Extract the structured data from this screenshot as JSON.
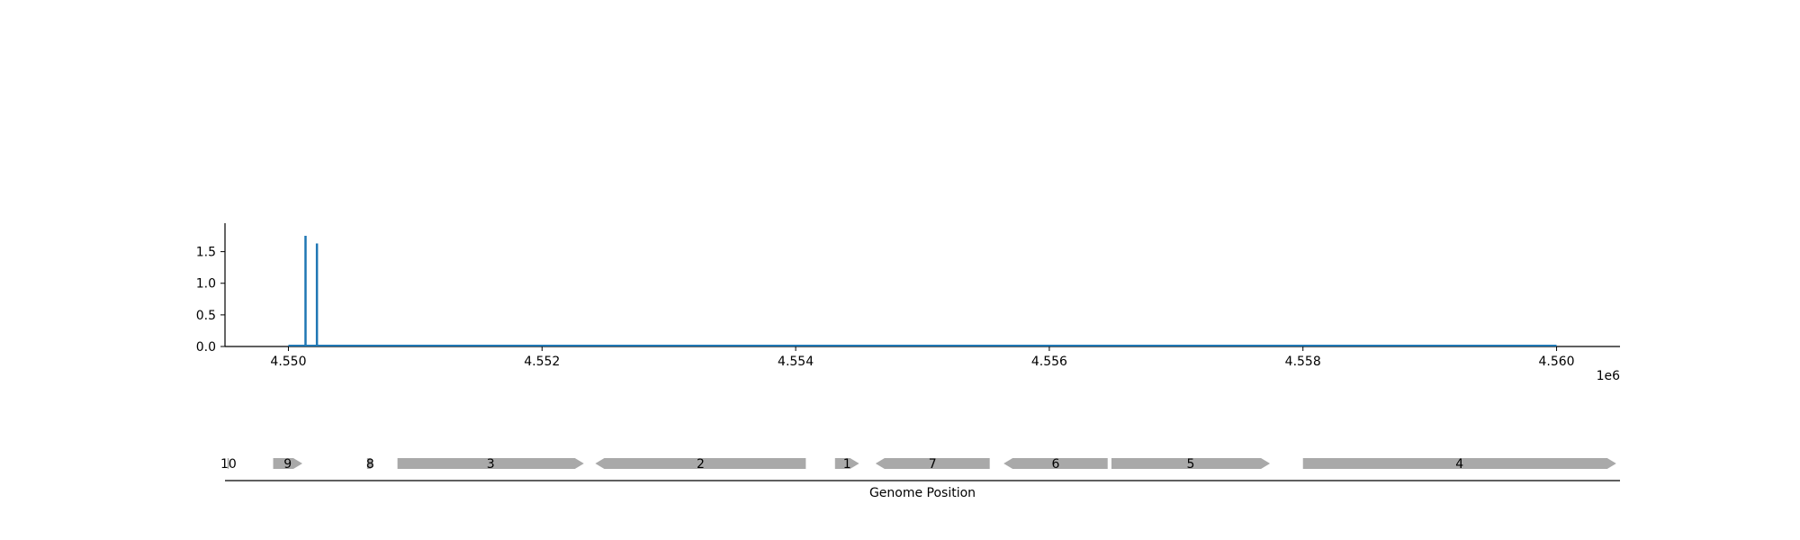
{
  "chart_data": [
    {
      "type": "bar",
      "title": "",
      "xlabel": "",
      "ylabel": "",
      "x_offset_label": "1e6",
      "xlim": [
        4549500,
        4560500
      ],
      "ylim": [
        0,
        1.95
      ],
      "x_ticks": [
        4550000,
        4552000,
        4554000,
        4556000,
        4558000,
        4560000
      ],
      "x_tick_labels": [
        "4.550",
        "4.552",
        "4.554",
        "4.556",
        "4.558",
        "4.560"
      ],
      "y_ticks": [
        0.0,
        0.5,
        1.0,
        1.5
      ],
      "y_tick_labels": [
        "0.0",
        "0.5",
        "1.0",
        "1.5"
      ],
      "baseline": {
        "x_start": 4550000,
        "x_end": 4560000,
        "y": 0.0
      },
      "bars": [
        {
          "x": 4550135,
          "y": 1.75
        },
        {
          "x": 4550225,
          "y": 1.63
        }
      ],
      "grid": false,
      "colors": {
        "series": "#1f77b4",
        "axis": "#000000"
      }
    },
    {
      "type": "gene-track",
      "xlabel": "Genome Position",
      "xlim": [
        4549500,
        4560500
      ],
      "colors": {
        "gene": "#a9a9a9",
        "axis": "#000000"
      },
      "genes": [
        {
          "label": "10",
          "start": 4549520,
          "end": 4549535,
          "strand": "+"
        },
        {
          "label": "9",
          "start": 4549880,
          "end": 4550110,
          "strand": "+"
        },
        {
          "label": "8",
          "start": 4550620,
          "end": 4550670,
          "strand": "+"
        },
        {
          "label": "3",
          "start": 4550860,
          "end": 4552330,
          "strand": "+"
        },
        {
          "label": "2",
          "start": 4552420,
          "end": 4554080,
          "strand": "-"
        },
        {
          "label": "1",
          "start": 4554310,
          "end": 4554500,
          "strand": "+"
        },
        {
          "label": "7",
          "start": 4554630,
          "end": 4555530,
          "strand": "-"
        },
        {
          "label": "6",
          "start": 4555640,
          "end": 4556460,
          "strand": "-"
        },
        {
          "label": "5",
          "start": 4556490,
          "end": 4557740,
          "strand": "+"
        },
        {
          "label": "4",
          "start": 4558000,
          "end": 4560470,
          "strand": "+"
        }
      ]
    }
  ]
}
